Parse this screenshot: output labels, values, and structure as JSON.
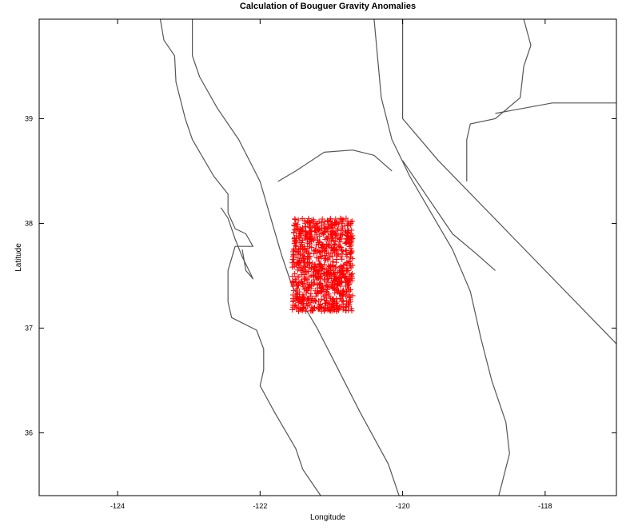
{
  "chart_data": {
    "type": "scatter",
    "title": "Calculation of Bouguer Gravity Anomalies",
    "xlabel": "Longitude",
    "ylabel": "Latitude",
    "xlim": [
      -125.1,
      -117.0
    ],
    "ylim": [
      35.4,
      39.95
    ],
    "xticks": [
      -124,
      -122,
      -120,
      -118
    ],
    "yticks": [
      36,
      37,
      38,
      39
    ],
    "grid": false,
    "marker": "+",
    "marker_color": "#ff0000",
    "line_color": "#555555",
    "station_region": {
      "lon": [
        -121.55,
        -120.7
      ],
      "lat": [
        37.16,
        38.05
      ],
      "n_points": 900
    },
    "coastline": [
      [
        -123.4,
        39.95
      ],
      [
        -123.35,
        39.75
      ],
      [
        -123.2,
        39.6
      ],
      [
        -123.18,
        39.35
      ],
      [
        -123.05,
        39.0
      ],
      [
        -122.95,
        38.8
      ],
      [
        -122.65,
        38.45
      ],
      [
        -122.45,
        38.28
      ],
      [
        -122.45,
        38.1
      ],
      [
        -122.35,
        37.95
      ],
      [
        -122.2,
        37.9
      ],
      [
        -122.1,
        37.78
      ],
      [
        -122.35,
        37.78
      ],
      [
        -122.45,
        37.55
      ],
      [
        -122.45,
        37.25
      ],
      [
        -122.4,
        37.1
      ],
      [
        -122.05,
        36.98
      ],
      [
        -121.95,
        36.8
      ],
      [
        -121.95,
        36.6
      ],
      [
        -122.0,
        36.45
      ],
      [
        -121.8,
        36.2
      ],
      [
        -121.5,
        35.85
      ],
      [
        -121.4,
        35.65
      ],
      [
        -121.15,
        35.4
      ]
    ],
    "bay_inner": [
      [
        -122.55,
        38.15
      ],
      [
        -122.45,
        38.05
      ],
      [
        -122.35,
        37.85
      ],
      [
        -122.25,
        37.68
      ],
      [
        -122.12,
        37.5
      ],
      [
        -122.1,
        37.47
      ],
      [
        -122.2,
        37.55
      ],
      [
        -122.25,
        37.75
      ]
    ],
    "central_valley_west": [
      [
        -122.95,
        39.95
      ],
      [
        -122.95,
        39.6
      ],
      [
        -122.85,
        39.4
      ],
      [
        -122.6,
        39.1
      ],
      [
        -122.3,
        38.8
      ],
      [
        -122.0,
        38.4
      ],
      [
        -121.85,
        38.05
      ],
      [
        -121.7,
        37.7
      ],
      [
        -121.55,
        37.4
      ],
      [
        -121.2,
        37.0
      ],
      [
        -120.9,
        36.6
      ],
      [
        -120.6,
        36.2
      ],
      [
        -120.2,
        35.7
      ],
      [
        -120.05,
        35.4
      ]
    ],
    "central_valley_east": [
      [
        -120.4,
        39.95
      ],
      [
        -120.3,
        39.2
      ],
      [
        -120.15,
        38.8
      ],
      [
        -119.9,
        38.45
      ],
      [
        -119.6,
        38.1
      ],
      [
        -119.3,
        37.75
      ],
      [
        -119.05,
        37.35
      ],
      [
        -118.9,
        36.9
      ],
      [
        -118.75,
        36.5
      ],
      [
        -118.55,
        36.1
      ],
      [
        -118.5,
        35.8
      ],
      [
        -118.65,
        35.4
      ]
    ],
    "state_border": [
      [
        -120.0,
        39.95
      ],
      [
        -120.0,
        39.0
      ],
      [
        -119.5,
        38.6
      ],
      [
        -118.5,
        37.9
      ],
      [
        -117.5,
        37.2
      ],
      [
        -117.0,
        36.85
      ]
    ],
    "county_line_ne": [
      [
        -118.3,
        39.95
      ],
      [
        -118.2,
        39.7
      ],
      [
        -118.3,
        39.5
      ],
      [
        -118.35,
        39.2
      ],
      [
        -118.7,
        39.0
      ],
      [
        -119.05,
        38.95
      ],
      [
        -119.1,
        38.8
      ],
      [
        -119.1,
        38.4
      ]
    ],
    "east_edge": [
      [
        -118.7,
        39.05
      ],
      [
        -117.9,
        39.15
      ],
      [
        -117.0,
        39.15
      ]
    ],
    "valley_arc": [
      [
        -121.75,
        38.4
      ],
      [
        -121.5,
        38.5
      ],
      [
        -121.1,
        38.68
      ],
      [
        -120.7,
        38.7
      ],
      [
        -120.4,
        38.65
      ],
      [
        -120.15,
        38.5
      ]
    ],
    "ne_mountain_line": [
      [
        -120.0,
        38.6
      ],
      [
        -119.7,
        38.3
      ],
      [
        -119.3,
        37.9
      ],
      [
        -118.95,
        37.7
      ],
      [
        -118.7,
        37.55
      ]
    ]
  }
}
